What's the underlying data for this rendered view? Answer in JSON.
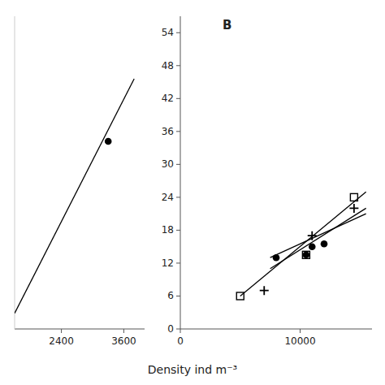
{
  "chart_data": [
    {
      "type": "scatter",
      "xlim": [
        1500,
        4000
      ],
      "ylim": [
        0,
        60
      ],
      "xticks": [
        2400,
        3600
      ],
      "tick_labels": "x",
      "series": [
        {
          "type": "line",
          "x": [
            1500,
            3800
          ],
          "values": [
            3,
            48
          ],
          "color": "black"
        },
        {
          "type": "scatter",
          "x": [
            3300
          ],
          "values": [
            36
          ],
          "color": "black",
          "marker": "circle"
        }
      ]
    },
    {
      "type": "scatter",
      "title": "B",
      "xlabel": "Density ind m⁻³",
      "xlim": [
        0,
        16000
      ],
      "ylim": [
        0,
        57
      ],
      "xticks": [
        0,
        10000
      ],
      "yticks": [
        0,
        6,
        12,
        18,
        24,
        30,
        36,
        42,
        48,
        54
      ],
      "series": [
        {
          "type": "line",
          "x": [
            5000,
            15500
          ],
          "values": [
            6,
            25
          ],
          "color": "black"
        },
        {
          "type": "line",
          "x": [
            7500,
            15500
          ],
          "values": [
            11,
            22
          ],
          "color": "black"
        },
        {
          "type": "line",
          "x": [
            7500,
            15500
          ],
          "values": [
            13,
            21
          ],
          "color": "black"
        },
        {
          "type": "scatter",
          "x": [
            8000,
            10500,
            11000,
            12000
          ],
          "values": [
            13,
            13.5,
            15,
            15.5
          ],
          "color": "black",
          "marker": "circle"
        },
        {
          "type": "scatter",
          "x": [
            5000,
            10500,
            14500
          ],
          "values": [
            6,
            13.5,
            24
          ],
          "color": "black",
          "marker": "square"
        },
        {
          "type": "scatter",
          "x": [
            7000,
            11000,
            14500
          ],
          "values": [
            7,
            17,
            22
          ],
          "color": "black",
          "marker": "plus"
        }
      ]
    }
  ]
}
